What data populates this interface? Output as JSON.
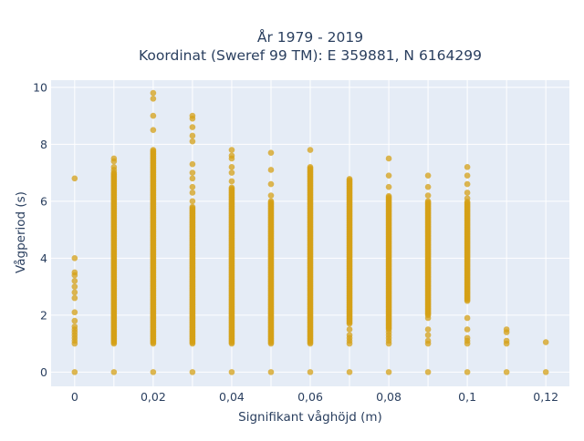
{
  "chart_data": {
    "type": "scatter",
    "title_line1": "År 1979 - 2019",
    "title_line2": "Koordinat (Sweref 99 TM): E 359881, N 6164299",
    "xlabel": "Signifikant våghöjd (m)",
    "ylabel": "Vågperiod (s)",
    "xlim": [
      -0.006,
      0.126
    ],
    "ylim": [
      -0.5,
      10.25
    ],
    "x_ticks": [
      0,
      0.01,
      0.02,
      0.03,
      0.04,
      0.05,
      0.06,
      0.07,
      0.08,
      0.09,
      0.1,
      0.11,
      0.12
    ],
    "x_tick_labels": [
      "0",
      "",
      "0,02",
      "",
      "0,04",
      "",
      "0,06",
      "",
      "0,08",
      "",
      "0,1",
      "",
      "0,12"
    ],
    "y_ticks": [
      0,
      2,
      4,
      6,
      8,
      10
    ],
    "y_tick_labels": [
      "0",
      "2",
      "4",
      "6",
      "8",
      "10"
    ],
    "grid": true,
    "marker_color": "#d4a017",
    "plot_bg": "#e5ecf6",
    "columns": [
      {
        "x": 0.0,
        "ranges": [],
        "points": [
          0,
          1.0,
          1.1,
          1.2,
          1.3,
          1.4,
          1.5,
          1.6,
          1.8,
          2.1,
          2.6,
          2.8,
          3.0,
          3.2,
          3.4,
          3.5,
          4.0,
          6.8
        ]
      },
      {
        "x": 0.01,
        "ranges": [
          [
            1.0,
            7.0
          ]
        ],
        "points": [
          0,
          7.1,
          7.2,
          7.4,
          7.5
        ]
      },
      {
        "x": 0.02,
        "ranges": [
          [
            1.0,
            7.8
          ]
        ],
        "points": [
          0,
          8.5,
          9.0,
          9.6,
          9.8
        ]
      },
      {
        "x": 0.03,
        "ranges": [
          [
            1.0,
            5.8
          ]
        ],
        "points": [
          0,
          6.0,
          6.3,
          6.5,
          6.8,
          7.0,
          7.3,
          8.1,
          8.3,
          8.6,
          8.9,
          9.0
        ]
      },
      {
        "x": 0.04,
        "ranges": [
          [
            1.0,
            6.5
          ]
        ],
        "points": [
          0,
          6.7,
          7.0,
          7.2,
          7.5,
          7.6,
          7.8
        ]
      },
      {
        "x": 0.05,
        "ranges": [
          [
            1.0,
            6.0
          ]
        ],
        "points": [
          0,
          6.2,
          6.6,
          7.1,
          7.7
        ]
      },
      {
        "x": 0.06,
        "ranges": [
          [
            1.0,
            7.2
          ]
        ],
        "points": [
          0,
          7.8
        ]
      },
      {
        "x": 0.07,
        "ranges": [
          [
            1.7,
            6.8
          ]
        ],
        "points": [
          0,
          1.0,
          1.1,
          1.2,
          1.3,
          1.5
        ]
      },
      {
        "x": 0.08,
        "ranges": [
          [
            1.5,
            6.2
          ]
        ],
        "points": [
          0,
          1.0,
          1.1,
          1.2,
          1.3,
          1.4,
          6.5,
          6.9,
          7.5
        ]
      },
      {
        "x": 0.09,
        "ranges": [
          [
            2.0,
            6.0
          ]
        ],
        "points": [
          0,
          1.0,
          1.1,
          1.3,
          1.5,
          1.9,
          6.2,
          6.5,
          6.9
        ]
      },
      {
        "x": 0.1,
        "ranges": [
          [
            2.5,
            6.0
          ]
        ],
        "points": [
          0,
          1.0,
          1.1,
          1.2,
          1.5,
          1.9,
          6.1,
          6.3,
          6.6,
          6.9,
          7.2
        ]
      },
      {
        "x": 0.11,
        "ranges": [],
        "points": [
          0,
          1.0,
          1.1,
          1.4,
          1.5
        ]
      },
      {
        "x": 0.12,
        "ranges": [],
        "points": [
          0,
          1.05
        ]
      }
    ]
  }
}
